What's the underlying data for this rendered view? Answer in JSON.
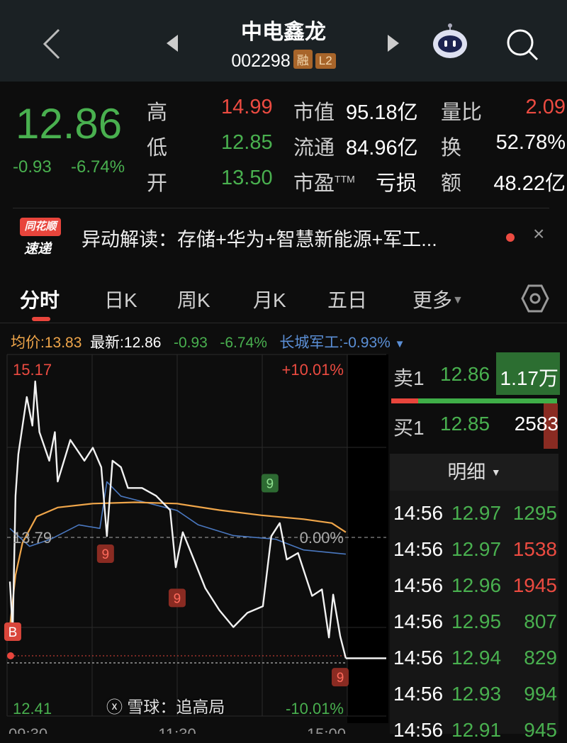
{
  "header": {
    "title": "中电鑫龙",
    "code": "002298",
    "badges": [
      "融",
      "L2"
    ]
  },
  "quote": {
    "price": "12.86",
    "change": "-0.93",
    "change_pct": "-6.74%",
    "stats": [
      {
        "label": "高",
        "value": "14.99",
        "color": "red"
      },
      {
        "label": "低",
        "value": "12.85",
        "color": "green"
      },
      {
        "label": "开",
        "value": "13.50",
        "color": "green"
      }
    ],
    "mid": [
      {
        "label": "市值",
        "value": "95.18亿"
      },
      {
        "label": "流通",
        "value": "84.96亿"
      },
      {
        "label": "市盈",
        "sup": "TTM",
        "value": "亏损"
      }
    ],
    "right": [
      {
        "label": "量比",
        "value": "2.09",
        "color": "red"
      },
      {
        "label": "换",
        "value": "52.78%"
      },
      {
        "label": "额",
        "value": "48.22亿"
      }
    ]
  },
  "news": {
    "logo_top": "同花顺",
    "logo_bottom": "速递",
    "text": "异动解读：存储+华为+智慧新能源+军工..."
  },
  "tabs": [
    {
      "label": "分时",
      "active": true
    },
    {
      "label": "日K"
    },
    {
      "label": "周K"
    },
    {
      "label": "月K"
    },
    {
      "label": "五日"
    },
    {
      "label": "更多"
    }
  ],
  "info": {
    "avg": "均价:13.83",
    "last": "最新:12.86",
    "chg": "-0.93",
    "pct": "-6.74%",
    "index": "长城军工:-0.93%"
  },
  "chart_data": {
    "type": "line",
    "prev_close": 13.79,
    "y_max": 15.17,
    "y_min": 12.41,
    "top_pct": "+10.01%",
    "bottom_pct": "-10.01%",
    "mid_pct": "0.00%",
    "top_label": "15.17",
    "bottom_label": "12.41",
    "mid_label": "13.79",
    "x_ticks": [
      "09:30",
      "11:30",
      "15:00"
    ],
    "price": [
      [
        "09:31",
        13.45
      ],
      [
        "09:33",
        13.07
      ],
      [
        "09:35",
        14.11
      ],
      [
        "09:37",
        14.43
      ],
      [
        "09:43",
        14.87
      ],
      [
        "09:47",
        14.65
      ],
      [
        "09:49",
        14.99
      ],
      [
        "09:52",
        14.6
      ],
      [
        "09:59",
        14.38
      ],
      [
        "10:03",
        14.6
      ],
      [
        "10:05",
        14.22
      ],
      [
        "10:14",
        14.54
      ],
      [
        "10:24",
        14.38
      ],
      [
        "10:30",
        14.48
      ],
      [
        "10:36",
        14.33
      ],
      [
        "10:40",
        13.8
      ],
      [
        "10:44",
        14.38
      ],
      [
        "10:50",
        14.33
      ],
      [
        "10:55",
        14.17
      ],
      [
        "11:05",
        14.17
      ],
      [
        "11:15",
        14.11
      ],
      [
        "11:25",
        14.0
      ],
      [
        "11:29",
        13.56
      ],
      [
        "13:04",
        13.83
      ],
      [
        "13:10",
        13.67
      ],
      [
        "13:20",
        13.4
      ],
      [
        "13:30",
        13.23
      ],
      [
        "13:40",
        13.1
      ],
      [
        "13:50",
        13.21
      ],
      [
        "14:01",
        13.26
      ],
      [
        "14:07",
        13.8
      ],
      [
        "14:13",
        13.9
      ],
      [
        "14:18",
        13.62
      ],
      [
        "14:26",
        13.67
      ],
      [
        "14:36",
        13.34
      ],
      [
        "14:43",
        13.39
      ],
      [
        "14:48",
        13.02
      ],
      [
        "14:51",
        13.35
      ],
      [
        "14:56",
        13.03
      ],
      [
        "15:00",
        12.86
      ]
    ],
    "avg": [
      [
        "09:31",
        13.1
      ],
      [
        "09:35",
        13.5
      ],
      [
        "09:40",
        13.75
      ],
      [
        "09:50",
        13.95
      ],
      [
        "10:05",
        14.02
      ],
      [
        "10:30",
        14.05
      ],
      [
        "11:00",
        14.06
      ],
      [
        "11:30",
        14.05
      ],
      [
        "13:30",
        14.0
      ],
      [
        "14:00",
        13.96
      ],
      [
        "14:30",
        13.93
      ],
      [
        "14:50",
        13.9
      ],
      [
        "15:00",
        13.83
      ]
    ],
    "index_pct": [
      [
        "09:31",
        0.5
      ],
      [
        "09:45",
        -0.5
      ],
      [
        "10:00",
        -0.1
      ],
      [
        "10:20",
        0.7
      ],
      [
        "10:35",
        0.5
      ],
      [
        "10:40",
        3.1
      ],
      [
        "10:50",
        2.3
      ],
      [
        "11:00",
        2.1
      ],
      [
        "11:30",
        1.5
      ],
      [
        "13:15",
        0.7
      ],
      [
        "13:40",
        0.1
      ],
      [
        "14:10",
        -0.1
      ],
      [
        "14:30",
        -0.7
      ],
      [
        "15:00",
        -0.93
      ]
    ],
    "markers": [
      {
        "label": "9",
        "time": "10:39",
        "price": 13.79,
        "color": "red"
      },
      {
        "label": "9",
        "time": "11:30",
        "price": 13.45,
        "color": "red"
      },
      {
        "label": "9",
        "time": "14:06",
        "price": 14.06,
        "color": "green"
      },
      {
        "label": "9",
        "time": "14:56",
        "price": 12.84,
        "color": "red"
      },
      {
        "label": "B",
        "time": "09:33",
        "price": 13.07,
        "color": "red"
      }
    ]
  },
  "orderbook": {
    "sell": {
      "label": "卖1",
      "price": "12.86",
      "vol": "1.17万"
    },
    "buy": {
      "label": "买1",
      "price": "12.85",
      "vol": "2583"
    },
    "detail_label": "明细"
  },
  "trades": [
    {
      "t": "14:56",
      "p": "12.97",
      "v": "1295",
      "c": "green"
    },
    {
      "t": "14:56",
      "p": "12.97",
      "v": "1538",
      "c": "red"
    },
    {
      "t": "14:56",
      "p": "12.96",
      "v": "1945",
      "c": "red"
    },
    {
      "t": "14:56",
      "p": "12.95",
      "v": "807",
      "c": "green"
    },
    {
      "t": "14:56",
      "p": "12.94",
      "v": "829",
      "c": "green"
    },
    {
      "t": "14:56",
      "p": "12.93",
      "v": "994",
      "c": "green"
    },
    {
      "t": "14:56",
      "p": "12.91",
      "v": "945",
      "c": "green"
    }
  ],
  "watermark": "雪球：追高局",
  "colors": {
    "up": "#ec4b41",
    "down": "#49b04f",
    "avg": "#f0a64a",
    "index": "#4a78c0"
  }
}
